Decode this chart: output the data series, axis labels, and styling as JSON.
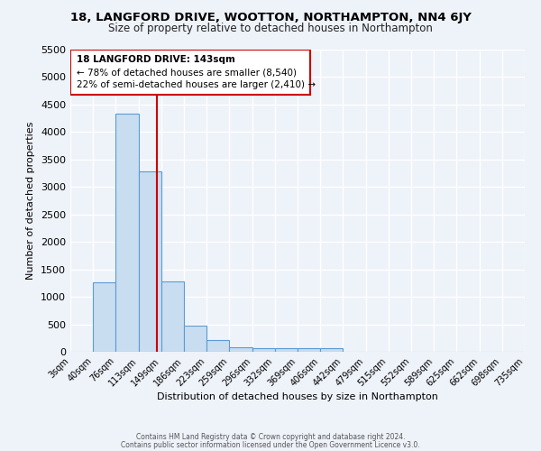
{
  "title": "18, LANGFORD DRIVE, WOOTTON, NORTHAMPTON, NN4 6JY",
  "subtitle": "Size of property relative to detached houses in Northampton",
  "xlabel": "Distribution of detached houses by size in Northampton",
  "ylabel": "Number of detached properties",
  "bin_labels": [
    "3sqm",
    "40sqm",
    "76sqm",
    "113sqm",
    "149sqm",
    "186sqm",
    "223sqm",
    "259sqm",
    "296sqm",
    "332sqm",
    "369sqm",
    "406sqm",
    "442sqm",
    "479sqm",
    "515sqm",
    "552sqm",
    "589sqm",
    "625sqm",
    "662sqm",
    "698sqm",
    "735sqm"
  ],
  "bar_heights": [
    0,
    1270,
    4330,
    3290,
    1280,
    480,
    210,
    90,
    70,
    60,
    60,
    60,
    0,
    0,
    0,
    0,
    0,
    0,
    0,
    0,
    0
  ],
  "bar_color": "#c9ddf0",
  "bar_edge_color": "#5b9bd5",
  "ylim": [
    0,
    5500
  ],
  "yticks": [
    0,
    500,
    1000,
    1500,
    2000,
    2500,
    3000,
    3500,
    4000,
    4500,
    5000,
    5500
  ],
  "vline_x": 143,
  "vline_color": "#cc0000",
  "annotation_title": "18 LANGFORD DRIVE: 143sqm",
  "annotation_line1": "← 78% of detached houses are smaller (8,540)",
  "annotation_line2": "22% of semi-detached houses are larger (2,410) →",
  "annotation_box_color": "#cc0000",
  "footer_line1": "Contains HM Land Registry data © Crown copyright and database right 2024.",
  "footer_line2": "Contains public sector information licensed under the Open Government Licence v3.0.",
  "background_color": "#eef2f9",
  "grid_color": "#ffffff",
  "bin_edges": [
    3,
    40,
    76,
    113,
    149,
    186,
    223,
    259,
    296,
    332,
    369,
    406,
    442,
    479,
    515,
    552,
    589,
    625,
    662,
    698,
    735
  ]
}
